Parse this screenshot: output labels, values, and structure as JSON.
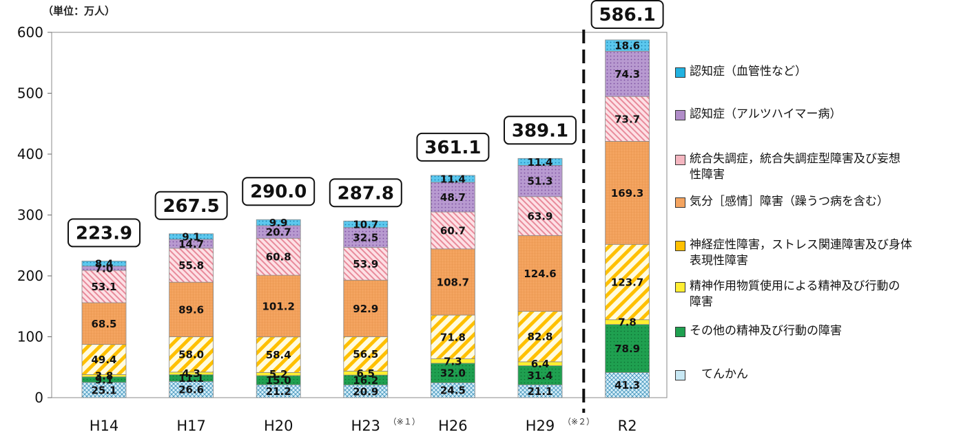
{
  "chart_data": {
    "type": "bar",
    "stacked": true,
    "unit_label": "（単位：万人）",
    "categories": [
      "H14",
      "H17",
      "H20",
      "H23",
      "H26",
      "H29",
      "R2"
    ],
    "category_notes": [
      "",
      "",
      "",
      "（※１）",
      "",
      "（※２）",
      ""
    ],
    "totals": [
      "223.9",
      "267.5",
      "290.0",
      "287.8",
      "361.1",
      "389.1",
      "586.1"
    ],
    "ylim": [
      0,
      600
    ],
    "yticks": [
      "0",
      "100",
      "200",
      "300",
      "400",
      "500",
      "600"
    ],
    "divider_after_category": "H29",
    "series": [
      {
        "name": "てんかん",
        "color": "#c8e8f4",
        "pattern": "cross",
        "values": [
          25.1,
          26.6,
          21.2,
          20.9,
          24.5,
          21.1,
          41.3
        ],
        "labels": [
          "25.1",
          "26.6",
          "21.2",
          "20.9",
          "24.5",
          "21.1",
          "41.3"
        ]
      },
      {
        "name": "その他の精神及び行動の障害",
        "color": "#1fa050",
        "pattern": "dots",
        "values": [
          9.1,
          11.1,
          15.0,
          16.2,
          32.0,
          31.4,
          78.9
        ],
        "labels": [
          "9.1",
          "11.1",
          "15.0",
          "16.2",
          "32.0",
          "31.4",
          "78.9"
        ]
      },
      {
        "name": "精神作用物質使用による精神及び行動の障害",
        "color": "#ffee33",
        "pattern": "solid",
        "values": [
          3.8,
          4.3,
          5.2,
          6.5,
          7.3,
          6.4,
          7.8
        ],
        "labels": [
          "3.8",
          "4.3",
          "5.2",
          "6.5",
          "7.3",
          "6.4",
          "7.8"
        ]
      },
      {
        "name": "神経症性障害，ストレス関連障害及び身体表現性障害",
        "color": "#ffc000",
        "pattern": "diag",
        "values": [
          49.4,
          58.0,
          58.4,
          56.5,
          71.8,
          82.8,
          123.7
        ],
        "labels": [
          "49.4",
          "58.0",
          "58.4",
          "56.5",
          "71.8",
          "82.8",
          "123.7"
        ]
      },
      {
        "name": "気分［感情］障害（躁うつ病を含む）",
        "color": "#f4a460",
        "pattern": "grid",
        "values": [
          68.5,
          89.6,
          101.2,
          92.9,
          108.7,
          124.6,
          169.3
        ],
        "labels": [
          "68.5",
          "89.6",
          "101.2",
          "92.9",
          "108.7",
          "124.6",
          "169.3"
        ]
      },
      {
        "name": "統合失調症，統合失調症型障害及び妄想性障害",
        "color": "#f4b6c0",
        "pattern": "diagfine",
        "values": [
          53.1,
          55.8,
          60.8,
          53.9,
          60.7,
          63.9,
          73.7
        ],
        "labels": [
          "53.1",
          "55.8",
          "60.8",
          "53.9",
          "60.7",
          "63.9",
          "73.7"
        ]
      },
      {
        "name": "認知症（アルツハイマー病）",
        "color": "#b08cc8",
        "pattern": "dots",
        "values": [
          7.0,
          14.7,
          20.7,
          32.5,
          48.7,
          51.3,
          74.3
        ],
        "labels": [
          "7.0",
          "14.7",
          "20.7",
          "32.5",
          "48.7",
          "51.3",
          "74.3"
        ]
      },
      {
        "name": "認知症（血管性など）",
        "color": "#22b2e0",
        "pattern": "dots",
        "values": [
          8.4,
          9.1,
          9.9,
          10.7,
          11.4,
          11.4,
          18.6
        ],
        "labels": [
          "8.4",
          "9.1",
          "9.9",
          "10.7",
          "11.4",
          "11.4",
          "18.6"
        ]
      }
    ],
    "legend_order": [
      7,
      6,
      5,
      4,
      3,
      2,
      1,
      0
    ],
    "legend_lines": [
      [
        "認知症（血管性など）"
      ],
      [
        "認知症（アルツハイマー病）"
      ],
      [
        "統合失調症，統合失調症型障害及び妄想",
        "性障害"
      ],
      [
        "気分［感情］障害（躁うつ病を含む）"
      ],
      [
        "神経症性障害，ストレス関連障害及び身体",
        "表現性障害"
      ],
      [
        "精神作用物質使用による精神及び行動の",
        "障害"
      ],
      [
        "その他の精神及び行動の障害"
      ],
      [
        "　てんかん"
      ]
    ]
  }
}
